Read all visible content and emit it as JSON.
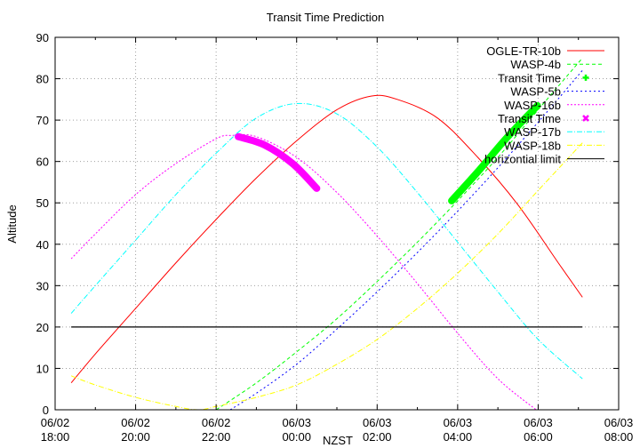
{
  "chart_data": {
    "type": "line",
    "title": "Transit Time Prediction",
    "xlabel": "NZST",
    "ylabel": "Altitude",
    "ylim": [
      0,
      90
    ],
    "yticks": [
      0,
      10,
      20,
      30,
      40,
      50,
      60,
      70,
      80,
      90
    ],
    "xlim_hours_from_0602_1800": [
      0,
      14
    ],
    "xticks": [
      {
        "h": 0,
        "date": "06/02",
        "time": "18:00"
      },
      {
        "h": 2,
        "date": "06/02",
        "time": "20:00"
      },
      {
        "h": 4,
        "date": "06/02",
        "time": "22:00"
      },
      {
        "h": 6,
        "date": "06/03",
        "time": "00:00"
      },
      {
        "h": 8,
        "date": "06/03",
        "time": "02:00"
      },
      {
        "h": 10,
        "date": "06/03",
        "time": "04:00"
      },
      {
        "h": 12,
        "date": "06/03",
        "time": "06:00"
      },
      {
        "h": 14,
        "date": "06/03",
        "time": "08:00"
      }
    ],
    "grid": true,
    "legend_position": "top-right",
    "series": [
      {
        "name": "OGLE-TR-10b",
        "color": "#ff0000",
        "dash": "",
        "kind": "line",
        "x": [
          0.4,
          1.0,
          2.0,
          3.0,
          4.0,
          5.0,
          6.0,
          7.0,
          7.85,
          8.5,
          9.5,
          10.5,
          11.5,
          12.5,
          13.1
        ],
        "y": [
          6.5,
          13.5,
          24.5,
          35.5,
          46.0,
          56.0,
          65.0,
          72.5,
          75.8,
          75.0,
          70.5,
          61.0,
          49.5,
          35.5,
          27.2
        ]
      },
      {
        "name": "WASP-4b",
        "color": "#00ff00",
        "dash": "4,3",
        "kind": "line",
        "x": [
          4.0,
          5.0,
          6.0,
          7.0,
          8.0,
          9.0,
          10.0,
          11.0,
          12.0,
          13.1
        ],
        "y": [
          0,
          6.5,
          14.0,
          22.0,
          31.0,
          40.5,
          50.5,
          61.0,
          72.5,
          85.0
        ]
      },
      {
        "name": "Transit Time",
        "color": "#00ff00",
        "kind": "transit",
        "marker": "plus",
        "x": [
          9.85,
          10.5,
          11.2,
          11.98
        ],
        "y": [
          50.5,
          57.5,
          65.5,
          73.5
        ]
      },
      {
        "name": "WASP-5b",
        "color": "#0000ff",
        "dash": "2,3",
        "kind": "line",
        "x": [
          4.35,
          5.0,
          6.0,
          7.0,
          8.0,
          9.0,
          10.0,
          11.0,
          12.0,
          13.1
        ],
        "y": [
          0,
          4.0,
          11.0,
          19.5,
          28.5,
          38.0,
          48.0,
          58.5,
          69.5,
          82.0
        ]
      },
      {
        "name": "WASP-16b",
        "color": "#ff00ff",
        "dash": "2,2",
        "kind": "line",
        "x": [
          0.4,
          1.0,
          2.0,
          3.0,
          4.0,
          4.4,
          5.0,
          6.0,
          7.0,
          8.0,
          9.0,
          10.0,
          11.0,
          11.95
        ],
        "y": [
          36.5,
          42.5,
          52.0,
          59.5,
          65.5,
          66.3,
          66.0,
          61.0,
          52.5,
          42.0,
          30.5,
          18.5,
          7.5,
          0
        ]
      },
      {
        "name": "Transit Time",
        "color": "#ff00ff",
        "kind": "transit",
        "marker": "cross",
        "x": [
          4.55,
          5.2,
          5.9,
          6.5
        ],
        "y": [
          66.0,
          64.0,
          59.5,
          53.5
        ]
      },
      {
        "name": "WASP-17b",
        "color": "#00ffff",
        "dash": "6,2,1,2",
        "kind": "line",
        "x": [
          0.4,
          1.0,
          2.0,
          3.0,
          4.0,
          5.0,
          6.0,
          7.0,
          8.0,
          9.0,
          10.0,
          11.0,
          12.0,
          13.1
        ],
        "y": [
          23.3,
          30.0,
          41.0,
          52.0,
          62.0,
          70.5,
          74.0,
          71.5,
          63.5,
          52.5,
          40.5,
          28.5,
          17.0,
          7.5
        ]
      },
      {
        "name": "WASP-18b",
        "color": "#ffff00",
        "dash": "6,2,1,2",
        "kind": "line",
        "x": [
          0.4,
          1.0,
          2.0,
          3.0,
          3.55,
          4.0,
          5.0,
          6.0,
          7.0,
          8.0,
          9.0,
          10.0,
          11.0,
          12.0,
          13.1
        ],
        "y": [
          8.2,
          6.0,
          3.0,
          0.8,
          0,
          0.8,
          3.0,
          6.0,
          11.0,
          17.0,
          24.5,
          33.0,
          42.5,
          53.0,
          64.5
        ]
      },
      {
        "name": "horizontial limit",
        "color": "#000000",
        "dash": "",
        "kind": "line",
        "x": [
          0.4,
          13.1
        ],
        "y": [
          20,
          20
        ]
      }
    ]
  }
}
